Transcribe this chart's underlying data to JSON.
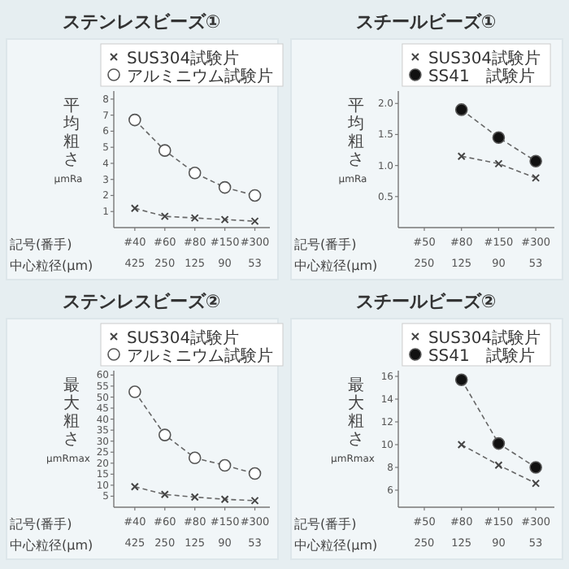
{
  "chart_data": [
    {
      "type": "line",
      "title": "ステンレスビーズ①",
      "xlabel": "記号(番手)\n中心粒径(μm)",
      "ylabel": "平均粗さ\nμmRa",
      "categories": [
        "#40\n425",
        "#60\n250",
        "#80\n125",
        "#150\n90",
        "#300\n53"
      ],
      "ylim": [
        0,
        8.5
      ],
      "yticks": [
        1,
        2,
        3,
        4,
        5,
        6,
        7,
        8
      ],
      "legend": "top",
      "series": [
        {
          "name": "SUS304試験片",
          "color": "#444444",
          "marker": "cross",
          "line_style": "dashed",
          "values": [
            1.2,
            0.7,
            0.6,
            0.5,
            0.4
          ]
        },
        {
          "name": "アルミニウム試験片",
          "color": "#ffffff",
          "marker": "circle",
          "line_style": "dashed",
          "values": [
            6.7,
            4.8,
            3.4,
            2.5,
            2.0
          ]
        }
      ]
    },
    {
      "type": "line",
      "title": "スチールビーズ①",
      "xlabel": "記号(番手)\n中心粒径(μm)",
      "ylabel": "平均粗さ\nμmRa",
      "categories": [
        "#50\n250",
        "#80\n125",
        "#150\n90",
        "#300\n53"
      ],
      "ylim": [
        0,
        2.2
      ],
      "yticks": [
        0.5,
        {
          "value": 1,
          "label": "1.0"
        },
        1.5,
        {
          "value": 2,
          "label": "2.0"
        }
      ],
      "legend": "top",
      "series": [
        {
          "name": "SUS304試験片",
          "color": "#444444",
          "marker": "cross",
          "line_style": "dashed",
          "values": [
            null,
            1.15,
            1.03,
            0.8
          ]
        },
        {
          "name": "SS41　試験片",
          "color": "#111111",
          "marker": "circle",
          "line_style": "dashed",
          "values": [
            null,
            1.9,
            1.45,
            1.07
          ]
        }
      ]
    },
    {
      "type": "line",
      "title": "ステンレスビーズ②",
      "xlabel": "記号(番手)\n中心粒径(μm)",
      "ylabel": "最大粗さ\nμmRmax",
      "categories": [
        "#40\n425",
        "#60\n250",
        "#80\n125",
        "#150\n90",
        "#300\n53"
      ],
      "ylim": [
        0,
        62
      ],
      "yticks": [
        5,
        10,
        15,
        20,
        25,
        30,
        35,
        40,
        45,
        50,
        55,
        60
      ],
      "legend": "top",
      "series": [
        {
          "name": "SUS304試験片",
          "color": "#444444",
          "marker": "cross",
          "line_style": "dashed",
          "values": [
            9.3,
            5.8,
            4.6,
            3.6,
            3.0
          ]
        },
        {
          "name": "アルミニウム試験片",
          "color": "#ffffff",
          "marker": "circle",
          "line_style": "dashed",
          "values": [
            52.4,
            32.8,
            22.4,
            19.0,
            15.3
          ]
        }
      ]
    },
    {
      "type": "line",
      "title": "スチールビーズ②",
      "xlabel": "記号(番手)\n中心粒径(μm)",
      "ylabel": "最大粗さ\nμmRmax",
      "categories": [
        "#50\n250",
        "#80\n125",
        "#150\n90",
        "#300\n53"
      ],
      "ylim": [
        4.5,
        16.5
      ],
      "yticks": [
        6,
        8,
        10,
        12,
        14,
        16
      ],
      "legend": "top",
      "series": [
        {
          "name": "SUS304試験片",
          "color": "#444444",
          "marker": "cross",
          "line_style": "dashed",
          "values": [
            null,
            10.0,
            8.2,
            6.6
          ]
        },
        {
          "name": "SS41　試験片",
          "color": "#111111",
          "marker": "circle",
          "line_style": "dashed",
          "values": [
            null,
            15.7,
            10.1,
            8.0
          ]
        }
      ]
    }
  ]
}
